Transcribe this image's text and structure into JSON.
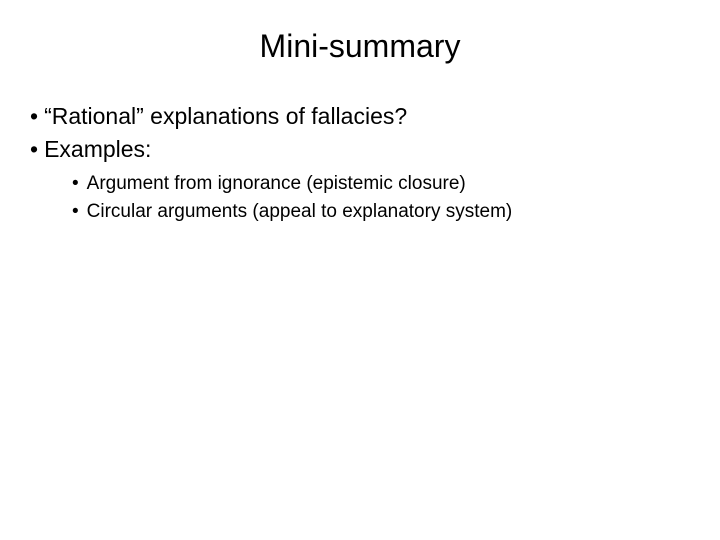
{
  "slide": {
    "title": "Mini-summary",
    "bullets_l1": [
      "“Rational” explanations of fallacies?",
      "Examples:"
    ],
    "bullets_l2": [
      "Argument from ignorance (epistemic closure)",
      "Circular arguments (appeal to explanatory system)"
    ]
  },
  "style": {
    "background_color": "#ffffff",
    "text_color": "#000000",
    "title_fontsize": 32,
    "l1_fontsize": 23,
    "l2_fontsize": 19,
    "font_family": "Arial, Helvetica, sans-serif",
    "bullet_char": "•"
  }
}
